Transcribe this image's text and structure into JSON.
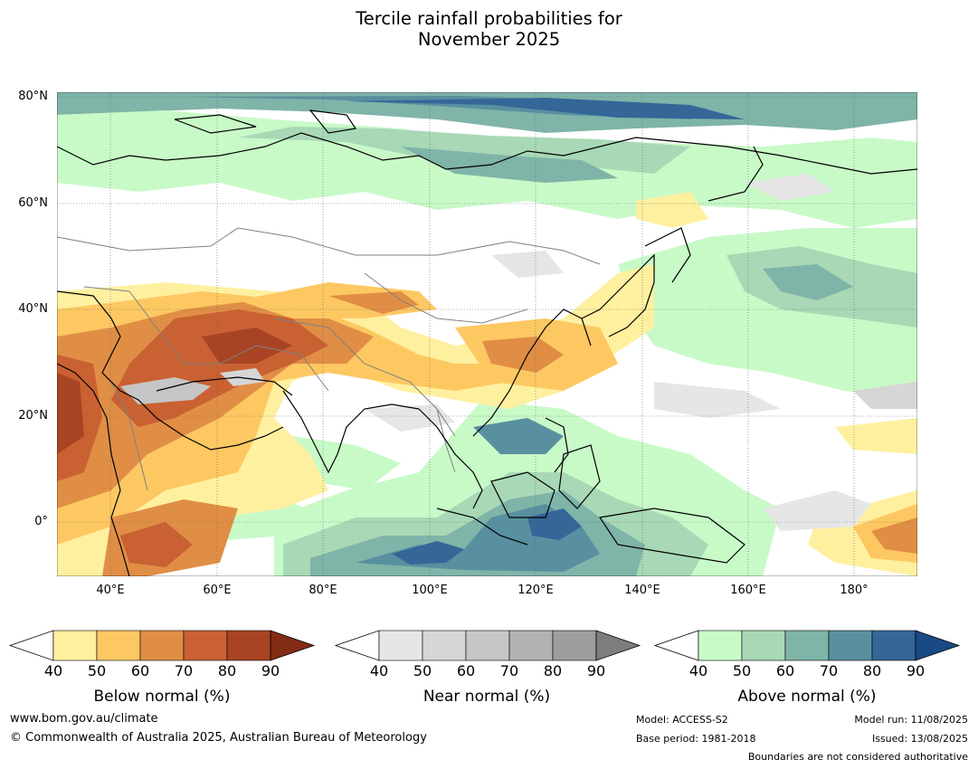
{
  "title": {
    "line1": "Tercile rainfall probabilities for",
    "line2": "November 2025"
  },
  "map": {
    "lat_labels": [
      "80°N",
      "60°N",
      "40°N",
      "20°N",
      "0°"
    ],
    "lon_labels": [
      "40°E",
      "60°E",
      "80°E",
      "100°E",
      "120°E",
      "140°E",
      "160°E",
      "180°"
    ],
    "extent": {
      "lon_min": 30,
      "lon_max": 192,
      "lat_min": -10,
      "lat_max": 81
    },
    "colors": {
      "land_outline": "#000000",
      "borders": "#808080",
      "gridlines": "#666666",
      "no_signal": "#ffffff"
    }
  },
  "legends": [
    {
      "id": "below",
      "title": "Below normal (%)",
      "ticks": [
        "40",
        "50",
        "60",
        "70",
        "80",
        "90"
      ],
      "colors": [
        "#fff0a0",
        "#fdc862",
        "#e08e45",
        "#c96132",
        "#a84424",
        "#832c15"
      ]
    },
    {
      "id": "near",
      "title": "Near normal (%)",
      "ticks": [
        "40",
        "50",
        "60",
        "70",
        "80",
        "90"
      ],
      "colors": [
        "#e6e6e6",
        "#d6d6d6",
        "#c6c6c6",
        "#b2b2b2",
        "#9e9e9e",
        "#7d7d7d"
      ]
    },
    {
      "id": "above",
      "title": "Above normal (%)",
      "ticks": [
        "40",
        "50",
        "60",
        "70",
        "80",
        "90"
      ],
      "colors": [
        "#c8fac8",
        "#a8d8b5",
        "#7fb4a8",
        "#5890a0",
        "#346698",
        "#1a4a85"
      ]
    }
  ],
  "footer": {
    "url": "www.bom.gov.au/climate",
    "copyright": "© Commonwealth of Australia 2025, Australian Bureau of Meteorology",
    "model": "Model: ACCESS-S2",
    "base_period": "Base period: 1981-2018",
    "model_run": "Model run: 11/08/2025",
    "issued": "Issued: 13/08/2025",
    "disclaimer": "Boundaries are not considered authoritative"
  }
}
